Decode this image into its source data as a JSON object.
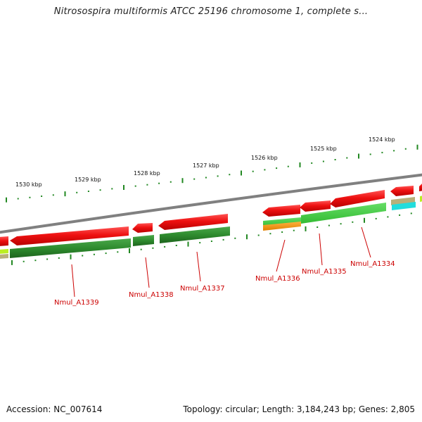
{
  "title": "Nitrosospira multiformis ATCC 25196 chromosome 1, complete s...",
  "footer": {
    "accession": "Accession: NC_007614",
    "summary": "Topology: circular; Length: 3,184,243 bp; Genes: 2,805"
  },
  "colors": {
    "backbone": "#7f7f7f",
    "forward_cds": "#ee1111",
    "reverse_cds": "#2e8b2e",
    "light_green": "#44cc44",
    "orange": "#ff9900",
    "tan": "#b8b07a",
    "cyan": "#22dddd",
    "yellow_green": "#bbee22",
    "tick": "#228822",
    "label_red": "#cc0000"
  },
  "scale_labels": [
    "1530 kbp",
    "1529 kbp",
    "1528 kbp",
    "1527 kbp",
    "1526 kbp",
    "1525 kbp",
    "1524 kbp"
  ],
  "genes": [
    "Nmul_A1339",
    "Nmul_A1338",
    "Nmul_A1337",
    "Nmul_A1336",
    "Nmul_A1335",
    "Nmul_A1334"
  ]
}
